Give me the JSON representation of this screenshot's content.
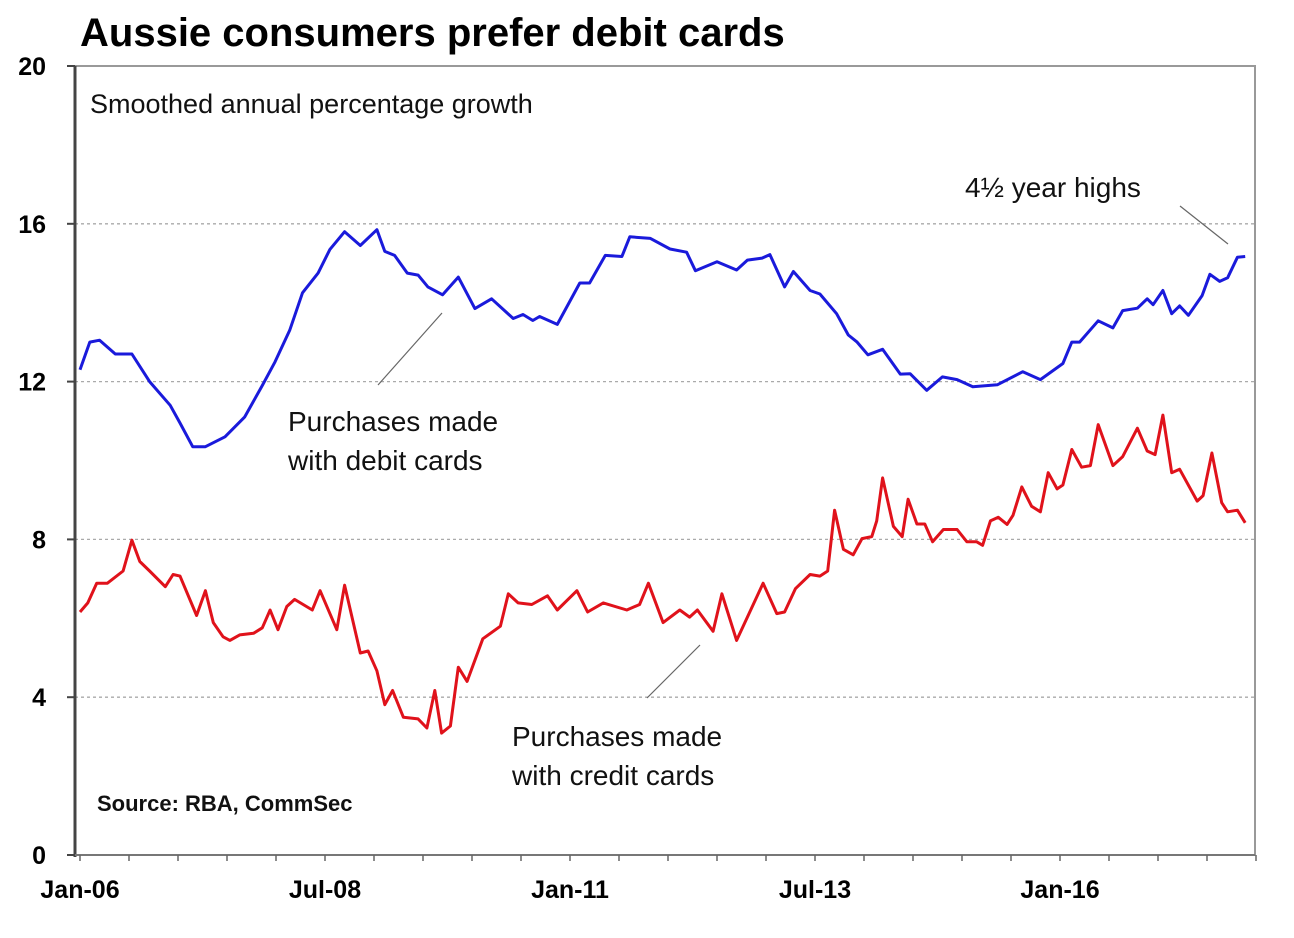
{
  "chart_data": {
    "type": "line",
    "title": "Aussie consumers prefer debit cards",
    "subtitle": "Smoothed annual percentage growth",
    "source": "Source: RBA, CommSec",
    "xlabel": "",
    "ylabel": "",
    "ylim": [
      0,
      20
    ],
    "xlim": [
      2006.0,
      2018.0
    ],
    "grid": true,
    "y_ticks": [
      {
        "value": 0,
        "label": "0"
      },
      {
        "value": 4,
        "label": "4"
      },
      {
        "value": 8,
        "label": "8"
      },
      {
        "value": 12,
        "label": "12"
      },
      {
        "value": 16,
        "label": "16"
      },
      {
        "value": 20,
        "label": "20"
      }
    ],
    "x_ticks": [
      {
        "value": 2006.0,
        "label": "Jan-06"
      },
      {
        "value": 2008.5,
        "label": "Jul-08"
      },
      {
        "value": 2011.0,
        "label": "Jan-11"
      },
      {
        "value": 2013.5,
        "label": "Jul-13"
      },
      {
        "value": 2016.0,
        "label": "Jan-16"
      }
    ],
    "annotations": {
      "highs": "4½ year highs",
      "debit_line1": "Purchases made",
      "debit_line2": "with debit cards",
      "credit_line1": "Purchases made",
      "credit_line2": "with credit cards"
    },
    "series": [
      {
        "name": "Purchases made with debit cards",
        "color": "#1a1adb",
        "points": [
          [
            2006.0,
            12.3
          ],
          [
            2006.1,
            13.0
          ],
          [
            2006.2,
            13.05
          ],
          [
            2006.36,
            12.7
          ],
          [
            2006.53,
            12.7
          ],
          [
            2006.71,
            12.0
          ],
          [
            2006.92,
            11.4
          ],
          [
            2007.02,
            10.95
          ],
          [
            2007.15,
            10.35
          ],
          [
            2007.28,
            10.35
          ],
          [
            2007.48,
            10.6
          ],
          [
            2007.68,
            11.1
          ],
          [
            2007.86,
            11.9
          ],
          [
            2007.99,
            12.5
          ],
          [
            2008.14,
            13.3
          ],
          [
            2008.27,
            14.25
          ],
          [
            2008.43,
            14.75
          ],
          [
            2008.55,
            15.35
          ],
          [
            2008.7,
            15.8
          ],
          [
            2008.86,
            15.45
          ],
          [
            2009.03,
            15.85
          ],
          [
            2009.11,
            15.3
          ],
          [
            2009.21,
            15.2
          ],
          [
            2009.34,
            14.75
          ],
          [
            2009.45,
            14.7
          ],
          [
            2009.55,
            14.4
          ],
          [
            2009.7,
            14.2
          ],
          [
            2009.86,
            14.65
          ],
          [
            2010.03,
            13.85
          ],
          [
            2010.2,
            14.1
          ],
          [
            2010.42,
            13.6
          ],
          [
            2010.52,
            13.7
          ],
          [
            2010.62,
            13.55
          ],
          [
            2010.69,
            13.65
          ],
          [
            2010.87,
            13.45
          ],
          [
            2011.1,
            14.5
          ],
          [
            2011.2,
            14.5
          ],
          [
            2011.36,
            15.2
          ],
          [
            2011.53,
            15.17
          ],
          [
            2011.61,
            15.67
          ],
          [
            2011.82,
            15.63
          ],
          [
            2012.02,
            15.36
          ],
          [
            2012.19,
            15.28
          ],
          [
            2012.28,
            14.81
          ],
          [
            2012.5,
            15.04
          ],
          [
            2012.7,
            14.83
          ],
          [
            2012.81,
            15.08
          ],
          [
            2012.96,
            15.13
          ],
          [
            2013.04,
            15.22
          ],
          [
            2013.19,
            14.4
          ],
          [
            2013.28,
            14.79
          ],
          [
            2013.45,
            14.31
          ],
          [
            2013.55,
            14.22
          ],
          [
            2013.72,
            13.72
          ],
          [
            2013.84,
            13.18
          ],
          [
            2013.93,
            13.0
          ],
          [
            2014.04,
            12.68
          ],
          [
            2014.19,
            12.82
          ],
          [
            2014.37,
            12.19
          ],
          [
            2014.47,
            12.2
          ],
          [
            2014.64,
            11.78
          ],
          [
            2014.8,
            12.12
          ],
          [
            2014.95,
            12.05
          ],
          [
            2015.11,
            11.87
          ],
          [
            2015.36,
            11.92
          ],
          [
            2015.62,
            12.25
          ],
          [
            2015.8,
            12.05
          ],
          [
            2016.03,
            12.46
          ],
          [
            2016.12,
            13.0
          ],
          [
            2016.2,
            13.0
          ],
          [
            2016.39,
            13.54
          ],
          [
            2016.54,
            13.36
          ],
          [
            2016.64,
            13.8
          ],
          [
            2016.79,
            13.86
          ],
          [
            2016.89,
            14.1
          ],
          [
            2016.95,
            13.95
          ],
          [
            2017.05,
            14.31
          ],
          [
            2017.14,
            13.72
          ],
          [
            2017.22,
            13.92
          ],
          [
            2017.31,
            13.68
          ],
          [
            2017.45,
            14.18
          ],
          [
            2017.53,
            14.72
          ],
          [
            2017.63,
            14.54
          ],
          [
            2017.71,
            14.63
          ],
          [
            2017.81,
            15.15
          ],
          [
            2017.89,
            15.17
          ]
        ]
      },
      {
        "name": "Purchases made with credit cards",
        "color": "#e0121b",
        "points": [
          [
            2006.0,
            6.16
          ],
          [
            2006.08,
            6.39
          ],
          [
            2006.17,
            6.89
          ],
          [
            2006.28,
            6.89
          ],
          [
            2006.44,
            7.2
          ],
          [
            2006.53,
            7.98
          ],
          [
            2006.61,
            7.44
          ],
          [
            2006.71,
            7.2
          ],
          [
            2006.87,
            6.8
          ],
          [
            2006.95,
            7.11
          ],
          [
            2007.02,
            7.07
          ],
          [
            2007.19,
            6.07
          ],
          [
            2007.28,
            6.7
          ],
          [
            2007.36,
            5.89
          ],
          [
            2007.46,
            5.53
          ],
          [
            2007.53,
            5.44
          ],
          [
            2007.63,
            5.58
          ],
          [
            2007.77,
            5.62
          ],
          [
            2007.86,
            5.76
          ],
          [
            2007.94,
            6.21
          ],
          [
            2008.02,
            5.71
          ],
          [
            2008.11,
            6.3
          ],
          [
            2008.19,
            6.48
          ],
          [
            2008.37,
            6.21
          ],
          [
            2008.45,
            6.7
          ],
          [
            2008.62,
            5.71
          ],
          [
            2008.7,
            6.84
          ],
          [
            2008.86,
            5.12
          ],
          [
            2008.94,
            5.17
          ],
          [
            2009.03,
            4.67
          ],
          [
            2009.11,
            3.81
          ],
          [
            2009.19,
            4.17
          ],
          [
            2009.3,
            3.49
          ],
          [
            2009.45,
            3.45
          ],
          [
            2009.54,
            3.22
          ],
          [
            2009.62,
            4.17
          ],
          [
            2009.69,
            3.09
          ],
          [
            2009.78,
            3.27
          ],
          [
            2009.86,
            4.76
          ],
          [
            2009.95,
            4.4
          ],
          [
            2010.11,
            5.48
          ],
          [
            2010.29,
            5.8
          ],
          [
            2010.37,
            6.62
          ],
          [
            2010.47,
            6.39
          ],
          [
            2010.61,
            6.35
          ],
          [
            2010.77,
            6.57
          ],
          [
            2010.87,
            6.21
          ],
          [
            2011.07,
            6.7
          ],
          [
            2011.18,
            6.16
          ],
          [
            2011.34,
            6.39
          ],
          [
            2011.58,
            6.21
          ],
          [
            2011.71,
            6.35
          ],
          [
            2011.8,
            6.89
          ],
          [
            2011.95,
            5.89
          ],
          [
            2012.12,
            6.21
          ],
          [
            2012.22,
            6.03
          ],
          [
            2012.3,
            6.21
          ],
          [
            2012.46,
            5.67
          ],
          [
            2012.55,
            6.62
          ],
          [
            2012.7,
            5.44
          ],
          [
            2012.81,
            6.03
          ],
          [
            2012.97,
            6.89
          ],
          [
            2013.11,
            6.12
          ],
          [
            2013.19,
            6.16
          ],
          [
            2013.3,
            6.75
          ],
          [
            2013.45,
            7.11
          ],
          [
            2013.55,
            7.07
          ],
          [
            2013.63,
            7.2
          ],
          [
            2013.7,
            8.74
          ],
          [
            2013.79,
            7.75
          ],
          [
            2013.89,
            7.61
          ],
          [
            2013.98,
            8.02
          ],
          [
            2014.08,
            8.07
          ],
          [
            2014.13,
            8.47
          ],
          [
            2014.19,
            9.56
          ],
          [
            2014.3,
            8.33
          ],
          [
            2014.39,
            8.07
          ],
          [
            2014.45,
            9.02
          ],
          [
            2014.54,
            8.39
          ],
          [
            2014.62,
            8.39
          ],
          [
            2014.7,
            7.94
          ],
          [
            2014.81,
            8.25
          ],
          [
            2014.95,
            8.25
          ],
          [
            2015.05,
            7.94
          ],
          [
            2015.15,
            7.94
          ],
          [
            2015.21,
            7.85
          ],
          [
            2015.29,
            8.47
          ],
          [
            2015.37,
            8.56
          ],
          [
            2015.46,
            8.38
          ],
          [
            2015.52,
            8.61
          ],
          [
            2015.61,
            9.33
          ],
          [
            2015.71,
            8.84
          ],
          [
            2015.8,
            8.7
          ],
          [
            2015.88,
            9.69
          ],
          [
            2015.97,
            9.28
          ],
          [
            2016.03,
            9.38
          ],
          [
            2016.12,
            10.28
          ],
          [
            2016.22,
            9.83
          ],
          [
            2016.31,
            9.87
          ],
          [
            2016.39,
            10.91
          ],
          [
            2016.54,
            9.87
          ],
          [
            2016.64,
            10.1
          ],
          [
            2016.79,
            10.82
          ],
          [
            2016.89,
            10.24
          ],
          [
            2016.97,
            10.15
          ],
          [
            2017.05,
            11.15
          ],
          [
            2017.14,
            9.69
          ],
          [
            2017.22,
            9.78
          ],
          [
            2017.4,
            8.97
          ],
          [
            2017.46,
            9.11
          ],
          [
            2017.55,
            10.19
          ],
          [
            2017.65,
            8.93
          ],
          [
            2017.71,
            8.7
          ],
          [
            2017.81,
            8.74
          ],
          [
            2017.89,
            8.42
          ]
        ]
      }
    ]
  }
}
